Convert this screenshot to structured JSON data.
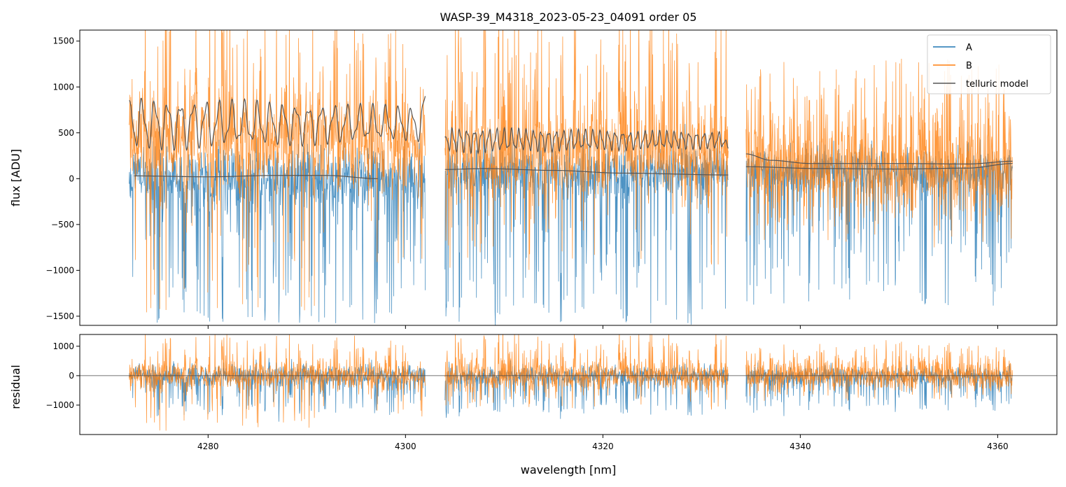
{
  "chart_data": [
    {
      "type": "line",
      "title": "WASP-39_M4318_2023-05-23_04091  order 05",
      "xlabel": "",
      "ylabel": "flux [ADU]",
      "xlim": [
        4267,
        4366
      ],
      "ylim": [
        -1600,
        1620
      ],
      "x_ticks": [
        4280,
        4300,
        4320,
        4340,
        4360
      ],
      "y_ticks": [
        -1500,
        -1000,
        -500,
        0,
        500,
        1000,
        1500
      ],
      "y_tick_labels": [
        "−1500",
        "−1000",
        "−500",
        "0",
        "500",
        "1000",
        "1500"
      ],
      "segments": [
        [
          4272.0,
          4302.0
        ],
        [
          4304.0,
          4332.7
        ],
        [
          4334.5,
          4361.5
        ]
      ],
      "legend": {
        "placement": "top-right",
        "entries": [
          "A",
          "B",
          "telluric model"
        ]
      },
      "series": [
        {
          "name": "A",
          "color": "#1f77b4",
          "description_values": {
            "segment_1": {
              "baseline": 0,
              "noise_up": 400,
              "dips_down_to": -1600
            },
            "segment_2": {
              "baseline": 80,
              "noise_up": 300,
              "dips_down_to": -1600
            },
            "segment_3": {
              "baseline": 100,
              "noise_up": 250,
              "dips_down_to": -1400
            }
          }
        },
        {
          "name": "B",
          "color": "#ff7f0e",
          "description_values": {
            "segment_1": {
              "baseline": 500,
              "spikes_up_to": 1620,
              "dips_down_to": -1500
            },
            "segment_2": {
              "baseline": 300,
              "spikes_up_to": 1620,
              "dips_down_to": -1000
            },
            "segment_3": {
              "baseline": 150,
              "spikes_up_to": 1100,
              "dips_down_to": -700
            }
          }
        },
        {
          "name": "telluric model",
          "color": "#555555",
          "upper_curve": {
            "segment_1": {
              "start": 850,
              "end": 900,
              "mean": 600,
              "oscillation_amplitude": 230,
              "period_nm": 1.3
            },
            "segment_2": {
              "start": 450,
              "end": 330,
              "mean": 420,
              "oscillation_amplitude": 110,
              "period_nm": 0.75
            },
            "segment_3": {
              "points": [
                [
                  4334.5,
                  270
                ],
                [
                  4337,
                  200
                ],
                [
                  4341,
                  165
                ],
                [
                  4350,
                  165
                ],
                [
                  4357,
                  160
                ],
                [
                  4361.5,
                  190
                ]
              ]
            }
          },
          "lower_curve": {
            "segment_1": {
              "points": [
                [
                  4272.5,
                  30
                ],
                [
                  4280,
                  20
                ],
                [
                  4287,
                  35
                ],
                [
                  4292,
                  35
                ],
                [
                  4297.2,
                  0
                ]
              ]
            },
            "segment_2": {
              "points": [
                [
                  4304,
                  100
                ],
                [
                  4308,
                  110
                ],
                [
                  4315,
                  90
                ],
                [
                  4322,
                  60
                ],
                [
                  4332.7,
                  40
                ]
              ]
            },
            "segment_3": {
              "points": [
                [
                  4334.5,
                  130
                ],
                [
                  4342,
                  110
                ],
                [
                  4350,
                  105
                ],
                [
                  4357,
                  115
                ],
                [
                  4361.5,
                  165
                ]
              ]
            }
          }
        }
      ]
    },
    {
      "type": "line",
      "title": "",
      "xlabel": "wavelength [nm]",
      "ylabel": "residual",
      "xlim": [
        4267,
        4366
      ],
      "ylim": [
        -2000,
        1400
      ],
      "x_ticks": [
        4280,
        4300,
        4320,
        4340,
        4360
      ],
      "x_tick_labels": [
        "4280",
        "4300",
        "4320",
        "4340",
        "4360"
      ],
      "y_ticks": [
        -1000,
        0,
        1000
      ],
      "y_tick_labels": [
        "−1000",
        "0",
        "1000"
      ],
      "reference_line_y": 0,
      "series": [
        {
          "name": "A",
          "color": "#1f77b4"
        },
        {
          "name": "B",
          "color": "#ff7f0e"
        }
      ]
    }
  ]
}
